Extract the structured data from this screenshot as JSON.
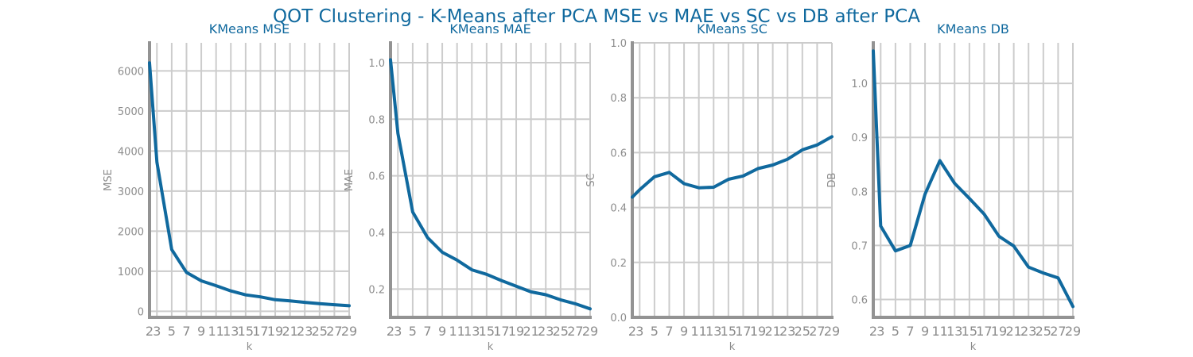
{
  "suptitle": "QOT Clustering - K-Means after PCA MSE vs MAE vs SC vs DB after PCA",
  "colors": {
    "line": "#10699e",
    "grid": "#cccccc",
    "spine": "#939393",
    "text": "#8c8c8c",
    "title": "#10699e"
  },
  "chart_data": [
    {
      "type": "line",
      "title": "KMeans MSE",
      "xlabel": "k",
      "ylabel": "MSE",
      "x": [
        2,
        3,
        5,
        7,
        9,
        11,
        13,
        15,
        17,
        19,
        21,
        23,
        25,
        27,
        29
      ],
      "values": [
        6200,
        3720,
        1540,
        970,
        760,
        640,
        510,
        410,
        360,
        290,
        260,
        225,
        190,
        165,
        140
      ],
      "ylim": [
        -150,
        6700
      ],
      "yticks": [
        0,
        1000,
        2000,
        3000,
        4000,
        5000,
        6000
      ],
      "ytick_labels": [
        "0",
        "1000",
        "2000",
        "3000",
        "4000",
        "5000",
        "6000"
      ],
      "xticks": [
        2,
        3,
        5,
        7,
        9,
        11,
        13,
        15,
        17,
        19,
        21,
        23,
        25,
        27,
        29
      ],
      "xtick_labels": [
        "2",
        "3",
        "5",
        "7",
        "9",
        "11",
        "13",
        "15",
        "17",
        "19",
        "21",
        "23",
        "25",
        "27",
        "29"
      ],
      "grid": true
    },
    {
      "type": "line",
      "title": "KMeans MAE",
      "xlabel": "k",
      "ylabel": "MAE",
      "x": [
        2,
        3,
        5,
        7,
        9,
        11,
        13,
        15,
        17,
        19,
        21,
        23,
        25,
        27,
        29
      ],
      "values": [
        1.01,
        0.75,
        0.472,
        0.382,
        0.33,
        0.302,
        0.268,
        0.252,
        0.23,
        0.21,
        0.19,
        0.18,
        0.162,
        0.148,
        0.13
      ],
      "ylim": [
        0.1,
        1.07
      ],
      "yticks": [
        0.2,
        0.4,
        0.6,
        0.8,
        1.0
      ],
      "ytick_labels": [
        "0.2",
        "0.4",
        "0.6",
        "0.8",
        "1.0"
      ],
      "xticks": [
        2,
        3,
        5,
        7,
        9,
        11,
        13,
        15,
        17,
        19,
        21,
        23,
        25,
        27,
        29
      ],
      "xtick_labels": [
        "2",
        "3",
        "5",
        "7",
        "9",
        "11",
        "13",
        "15",
        "17",
        "19",
        "21",
        "23",
        "25",
        "27",
        "29"
      ],
      "grid": true
    },
    {
      "type": "line",
      "title": "KMeans SC",
      "xlabel": "k",
      "ylabel": "SC",
      "x": [
        2,
        3,
        5,
        7,
        9,
        11,
        13,
        15,
        17,
        19,
        21,
        23,
        25,
        27,
        29
      ],
      "values": [
        0.438,
        0.465,
        0.512,
        0.528,
        0.487,
        0.472,
        0.474,
        0.503,
        0.515,
        0.542,
        0.555,
        0.576,
        0.61,
        0.628,
        0.658
      ],
      "ylim": [
        0.0,
        1.0
      ],
      "yticks": [
        0.0,
        0.2,
        0.4,
        0.6,
        0.8,
        1.0
      ],
      "ytick_labels": [
        "0.0",
        "0.2",
        "0.4",
        "0.6",
        "0.8",
        "1.0"
      ],
      "xticks": [
        2,
        3,
        5,
        7,
        9,
        11,
        13,
        15,
        17,
        19,
        21,
        23,
        25,
        27,
        29
      ],
      "xtick_labels": [
        "2",
        "3",
        "5",
        "7",
        "9",
        "11",
        "13",
        "15",
        "17",
        "19",
        "21",
        "23",
        "25",
        "27",
        "29"
      ],
      "grid": true
    },
    {
      "type": "line",
      "title": "KMeans DB",
      "xlabel": "k",
      "ylabel": "DB",
      "x": [
        2,
        3,
        5,
        7,
        9,
        11,
        13,
        15,
        17,
        19,
        21,
        23,
        25,
        27,
        29
      ],
      "values": [
        1.06,
        0.736,
        0.69,
        0.7,
        0.795,
        0.857,
        0.815,
        0.787,
        0.758,
        0.717,
        0.699,
        0.66,
        0.649,
        0.64,
        0.587
      ],
      "ylim": [
        0.567,
        1.075
      ],
      "yticks": [
        0.6,
        0.7,
        0.8,
        0.9,
        1.0
      ],
      "ytick_labels": [
        "0.6",
        "0.7",
        "0.8",
        "0.9",
        "1.0"
      ],
      "xticks": [
        2,
        3,
        5,
        7,
        9,
        11,
        13,
        15,
        17,
        19,
        21,
        23,
        25,
        27,
        29
      ],
      "xtick_labels": [
        "2",
        "3",
        "5",
        "7",
        "9",
        "11",
        "13",
        "15",
        "17",
        "19",
        "21",
        "23",
        "25",
        "27",
        "29"
      ],
      "grid": true
    }
  ]
}
